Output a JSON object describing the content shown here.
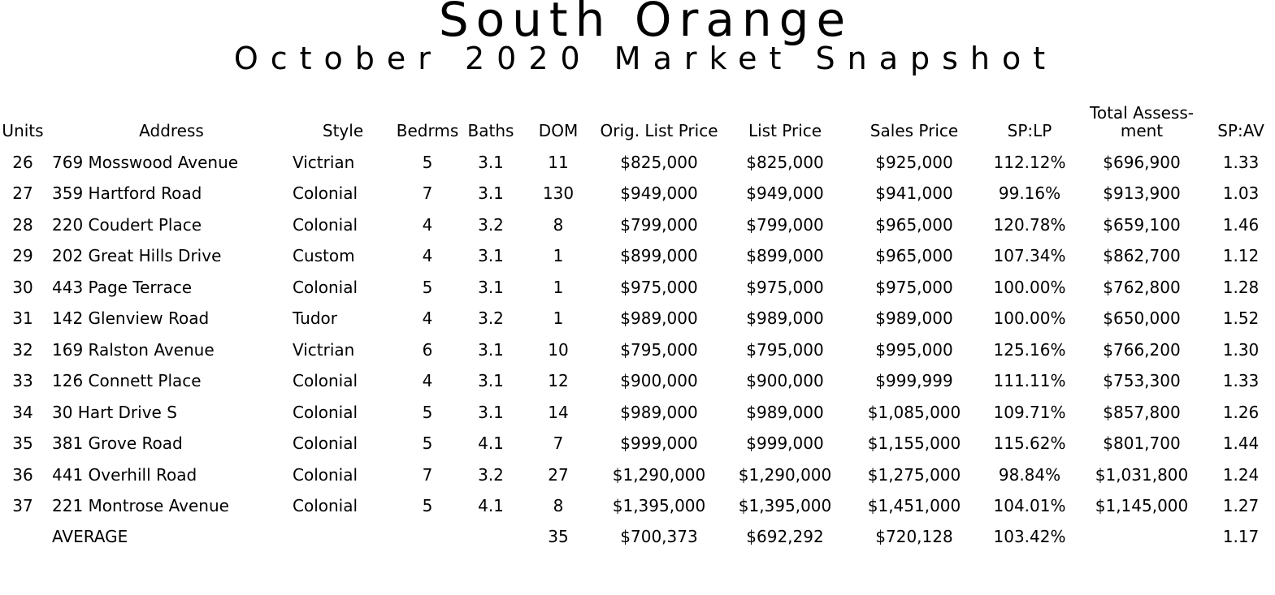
{
  "title": "South Orange",
  "subtitle": "October 2020 Market Snapshot",
  "headers": {
    "units": "Units",
    "address": "Address",
    "style": "Style",
    "bedrms": "Bedrms",
    "baths": "Baths",
    "dom": "DOM",
    "orig_list_price": "Orig. List Price",
    "list_price": "List Price",
    "sales_price": "Sales Price",
    "sp_lp": "SP:LP",
    "total_assessment_line1": "Total Assess-",
    "total_assessment_line2": "ment",
    "sp_av": "SP:AV"
  },
  "rows": [
    {
      "units": "26",
      "address": "769 Mosswood Avenue",
      "style": "Victrian",
      "bedrms": "5",
      "baths": "3.1",
      "dom": "11",
      "orig": "$825,000",
      "list": "$825,000",
      "sales": "$925,000",
      "splp": "112.12%",
      "assess": "$696,900",
      "spav": "1.33"
    },
    {
      "units": "27",
      "address": "359 Hartford Road",
      "style": "Colonial",
      "bedrms": "7",
      "baths": "3.1",
      "dom": "130",
      "orig": "$949,000",
      "list": "$949,000",
      "sales": "$941,000",
      "splp": "99.16%",
      "assess": "$913,900",
      "spav": "1.03"
    },
    {
      "units": "28",
      "address": "220 Coudert Place",
      "style": "Colonial",
      "bedrms": "4",
      "baths": "3.2",
      "dom": "8",
      "orig": "$799,000",
      "list": "$799,000",
      "sales": "$965,000",
      "splp": "120.78%",
      "assess": "$659,100",
      "spav": "1.46"
    },
    {
      "units": "29",
      "address": "202 Great Hills Drive",
      "style": "Custom",
      "bedrms": "4",
      "baths": "3.1",
      "dom": "1",
      "orig": "$899,000",
      "list": "$899,000",
      "sales": "$965,000",
      "splp": "107.34%",
      "assess": "$862,700",
      "spav": "1.12"
    },
    {
      "units": "30",
      "address": "443 Page Terrace",
      "style": "Colonial",
      "bedrms": "5",
      "baths": "3.1",
      "dom": "1",
      "orig": "$975,000",
      "list": "$975,000",
      "sales": "$975,000",
      "splp": "100.00%",
      "assess": "$762,800",
      "spav": "1.28"
    },
    {
      "units": "31",
      "address": "142 Glenview Road",
      "style": "Tudor",
      "bedrms": "4",
      "baths": "3.2",
      "dom": "1",
      "orig": "$989,000",
      "list": "$989,000",
      "sales": "$989,000",
      "splp": "100.00%",
      "assess": "$650,000",
      "spav": "1.52"
    },
    {
      "units": "32",
      "address": "169 Ralston Avenue",
      "style": "Victrian",
      "bedrms": "6",
      "baths": "3.1",
      "dom": "10",
      "orig": "$795,000",
      "list": "$795,000",
      "sales": "$995,000",
      "splp": "125.16%",
      "assess": "$766,200",
      "spav": "1.30"
    },
    {
      "units": "33",
      "address": "126 Connett Place",
      "style": "Colonial",
      "bedrms": "4",
      "baths": "3.1",
      "dom": "12",
      "orig": "$900,000",
      "list": "$900,000",
      "sales": "$999,999",
      "splp": "111.11%",
      "assess": "$753,300",
      "spav": "1.33"
    },
    {
      "units": "34",
      "address": "30 Hart Drive S",
      "style": "Colonial",
      "bedrms": "5",
      "baths": "3.1",
      "dom": "14",
      "orig": "$989,000",
      "list": "$989,000",
      "sales": "$1,085,000",
      "splp": "109.71%",
      "assess": "$857,800",
      "spav": "1.26"
    },
    {
      "units": "35",
      "address": "381 Grove Road",
      "style": "Colonial",
      "bedrms": "5",
      "baths": "4.1",
      "dom": "7",
      "orig": "$999,000",
      "list": "$999,000",
      "sales": "$1,155,000",
      "splp": "115.62%",
      "assess": "$801,700",
      "spav": "1.44"
    },
    {
      "units": "36",
      "address": "441 Overhill Road",
      "style": "Colonial",
      "bedrms": "7",
      "baths": "3.2",
      "dom": "27",
      "orig": "$1,290,000",
      "list": "$1,290,000",
      "sales": "$1,275,000",
      "splp": "98.84%",
      "assess": "$1,031,800",
      "spav": "1.24"
    },
    {
      "units": "37",
      "address": "221 Montrose Avenue",
      "style": "Colonial",
      "bedrms": "5",
      "baths": "4.1",
      "dom": "8",
      "orig": "$1,395,000",
      "list": "$1,395,000",
      "sales": "$1,451,000",
      "splp": "104.01%",
      "assess": "$1,145,000",
      "spav": "1.27"
    }
  ],
  "average": {
    "label": "AVERAGE",
    "dom": "35",
    "orig": "$700,373",
    "list": "$692,292",
    "sales": "$720,128",
    "splp": "103.42%",
    "spav": "1.17"
  }
}
